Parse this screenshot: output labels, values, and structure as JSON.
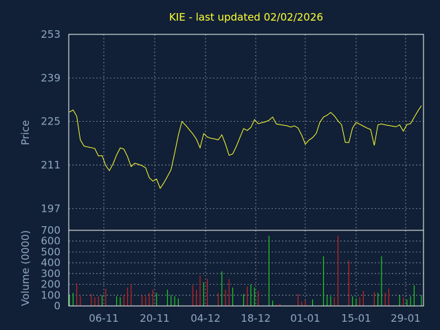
{
  "chart_data": [
    {
      "type": "line",
      "title": "KIE - last updated 02/02/2026",
      "ylabel": "Price",
      "ylim": [
        190,
        253
      ],
      "yticks": [
        197,
        211,
        225,
        239,
        253
      ],
      "xticks": [
        "06-11",
        "20-11",
        "04-12",
        "18-12",
        "01-01",
        "15-01",
        "29-01"
      ],
      "grid": true,
      "line_color": "#ffff33",
      "values": [
        228.0,
        228.7,
        226.7,
        219.1,
        217.1,
        216.8,
        216.6,
        216.3,
        213.9,
        214.0,
        210.8,
        209.2,
        211.3,
        214.2,
        216.5,
        216.1,
        213.7,
        210.5,
        211.6,
        211.2,
        210.8,
        210.1,
        206.9,
        205.8,
        206.5,
        203.5,
        205.2,
        207.3,
        209.5,
        214.9,
        220.6,
        225.0,
        223.8,
        222.4,
        221.0,
        219.3,
        216.5,
        221.1,
        220.0,
        219.6,
        219.4,
        219.1,
        220.7,
        217.7,
        214.1,
        214.6,
        217.0,
        219.9,
        222.7,
        222.1,
        223.1,
        225.6,
        224.3,
        224.6,
        224.9,
        225.4,
        226.4,
        224.2,
        224.0,
        223.8,
        223.6,
        223.2,
        223.6,
        222.9,
        220.6,
        217.7,
        219.0,
        219.8,
        221.1,
        224.7,
        226.4,
        227.0,
        227.9,
        226.8,
        225.2,
        223.9,
        218.3,
        218.2,
        222.9,
        224.7,
        224.1,
        223.5,
        222.9,
        222.4,
        217.3,
        223.9,
        224.2,
        223.9,
        223.7,
        223.5,
        223.3,
        223.9,
        221.9,
        224.0,
        224.3,
        226.3,
        228.3,
        230.1
      ]
    },
    {
      "type": "bar",
      "ylabel": "Volume (0000)",
      "ylim": [
        0,
        700
      ],
      "yticks": [
        0,
        100,
        200,
        300,
        400,
        500,
        600,
        700
      ],
      "xticks": [
        "06-11",
        "20-11",
        "04-12",
        "18-12",
        "01-01",
        "15-01",
        "29-01"
      ],
      "grid": true,
      "colors": {
        "up": "#22cc22",
        "down": "#cc2222"
      },
      "series": [
        {
          "values": [
            100,
            120,
            210,
            90,
            0,
            0,
            110,
            80,
            90,
            100,
            160,
            0,
            0,
            90,
            80,
            100,
            170,
            200,
            0,
            0,
            100,
            90,
            120,
            150,
            120,
            0,
            0,
            150,
            100,
            90,
            70,
            0,
            0,
            0,
            190,
            150,
            280,
            220,
            250,
            0,
            0,
            120,
            320,
            150,
            250,
            170,
            0,
            0,
            110,
            180,
            200,
            170,
            140,
            0,
            0,
            650,
            50,
            10,
            20,
            0,
            0,
            0,
            0,
            110,
            40,
            50,
            0,
            60,
            0,
            0,
            460,
            100,
            90,
            80,
            650,
            0,
            0,
            420,
            90,
            70,
            80,
            140,
            0,
            0,
            130,
            120,
            460,
            120,
            160,
            0,
            0,
            100,
            80,
            60,
            90,
            190,
            0,
            100
          ]
        }
      ]
    }
  ]
}
